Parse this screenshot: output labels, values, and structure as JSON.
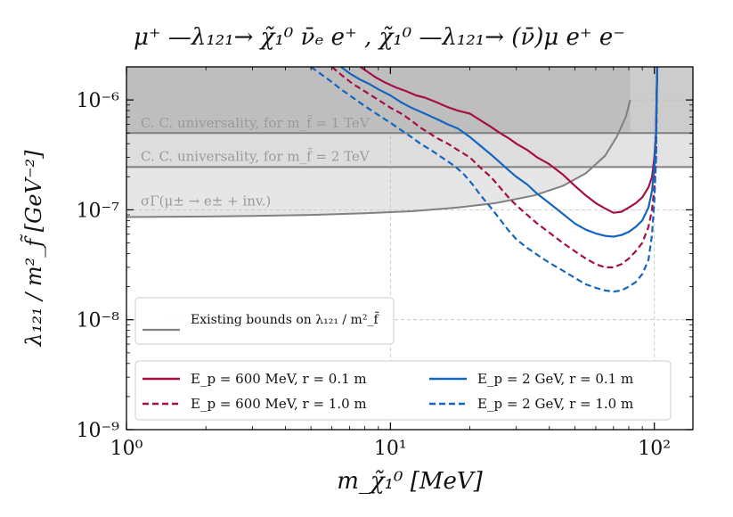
{
  "chart_data": {
    "type": "line",
    "title": "μ⁺ —λ₁₂₁→ χ̃₁⁰ ν̄ₑ e⁺ ,  χ̃₁⁰ —λ₁₂₁→ (ν̄)μ e⁺ e⁻",
    "xlabel": "m_χ̃₁⁰ [MeV]",
    "ylabel": "λ₁₂₁ / m²_f̃  [GeV⁻²]",
    "xscale": "log",
    "yscale": "log",
    "xlim": [
      1,
      140
    ],
    "ylim": [
      1e-09,
      2e-06
    ],
    "x_ticks": [
      {
        "value": 1,
        "label": "10⁰"
      },
      {
        "value": 10,
        "label": "10¹"
      },
      {
        "value": 100,
        "label": "10²"
      }
    ],
    "y_ticks": [
      {
        "value": 1e-09,
        "label": "10⁻⁹"
      },
      {
        "value": 1e-08,
        "label": "10⁻⁸"
      },
      {
        "value": 1e-07,
        "label": "10⁻⁷"
      },
      {
        "value": 1e-06,
        "label": "10⁻⁶"
      }
    ],
    "grid": true,
    "annotations": [
      {
        "id": "cc1",
        "text": "C. C. universality, for m_f̃ = 1 TeV",
        "value": 5e-07
      },
      {
        "id": "cc2",
        "text": "C. C. universality, for m_f̃ = 2 TeV",
        "value": 2.45e-07
      },
      {
        "id": "sigma",
        "text": "σΓ(μ± → e± + inv.)"
      }
    ],
    "bounds": {
      "cc_1tev": 5e-07,
      "cc_2tev": 2.45e-07,
      "sigma_curve": {
        "x": [
          1,
          2,
          3,
          5,
          8,
          12,
          18,
          25,
          35,
          45,
          55,
          65,
          72,
          78,
          81
        ],
        "y": [
          8.6e-08,
          8.7e-08,
          8.8e-08,
          9e-08,
          9.3e-08,
          9.7e-08,
          1.05e-07,
          1.15e-07,
          1.35e-07,
          1.65e-07,
          2.15e-07,
          3.1e-07,
          4.6e-07,
          7e-07,
          1e-06
        ]
      },
      "vertical_edge_x": 81
    },
    "series": [
      {
        "name": "E_p = 600 MeV, r = 0.1 m",
        "color": "#a50f45",
        "dash": "solid",
        "x": [
          7.7,
          8.2,
          8.8,
          9.5,
          10.5,
          11.5,
          12.5,
          13.5,
          15,
          16.5,
          18,
          20,
          22,
          24,
          26,
          28,
          30,
          33,
          36,
          40,
          45,
          50,
          55,
          60,
          65,
          70,
          75,
          80,
          85,
          90,
          95,
          98,
          100,
          101.5,
          102,
          102.5
        ],
        "y": [
          2e-06,
          1.8e-06,
          1.6e-06,
          1.45e-06,
          1.3e-06,
          1.2e-06,
          1.1e-06,
          1.05e-06,
          9.5e-07,
          8.6e-07,
          8e-07,
          7.5e-07,
          6.5e-07,
          5.7e-07,
          5e-07,
          4.5e-07,
          4e-07,
          3.5e-07,
          3e-07,
          2.6e-07,
          2.1e-07,
          1.65e-07,
          1.35e-07,
          1.15e-07,
          1.03e-07,
          9.4e-08,
          9.6e-08,
          1.05e-07,
          1.15e-07,
          1.3e-07,
          1.6e-07,
          2e-07,
          3e-07,
          5e-07,
          1e-06,
          2e-06
        ]
      },
      {
        "name": "E_p = 600 MeV, r = 1.0 m",
        "color": "#a50f45",
        "dash": "dashed",
        "x": [
          6.0,
          6.5,
          7.2,
          8.0,
          9.0,
          10,
          11,
          12,
          13,
          14,
          15,
          16.5,
          18,
          20,
          22,
          24,
          26,
          28,
          30,
          33,
          36,
          40,
          45,
          50,
          55,
          60,
          65,
          70,
          75,
          80,
          85,
          90,
          95,
          98,
          100,
          101.5,
          102,
          102.5
        ],
        "y": [
          2e-06,
          1.7e-06,
          1.4e-06,
          1.2e-06,
          1e-06,
          8.5e-07,
          7.5e-07,
          6.5e-07,
          5.6e-07,
          5e-07,
          4.5e-07,
          4e-07,
          3.5e-07,
          3e-07,
          2.4e-07,
          2e-07,
          1.6e-07,
          1.3e-07,
          1.1e-07,
          9e-08,
          7.5e-08,
          6.2e-08,
          5e-08,
          4.2e-08,
          3.6e-08,
          3.2e-08,
          3e-08,
          3e-08,
          3.2e-08,
          3.6e-08,
          4.2e-08,
          5e-08,
          7e-08,
          1e-07,
          1.6e-07,
          3e-07,
          8e-07,
          2e-06
        ]
      },
      {
        "name": "E_p = 2 GeV, r = 0.1 m",
        "color": "#1565c0",
        "dash": "solid",
        "x": [
          6.5,
          7.0,
          7.6,
          8.3,
          9.0,
          10,
          11,
          12,
          13.5,
          15,
          16.5,
          18,
          20,
          22,
          24,
          26,
          28,
          30,
          33,
          36,
          40,
          45,
          50,
          55,
          60,
          65,
          70,
          75,
          80,
          85,
          90,
          95,
          98,
          100,
          101.5,
          102,
          102.5
        ],
        "y": [
          2e-06,
          1.75e-06,
          1.55e-06,
          1.4e-06,
          1.25e-06,
          1.1e-06,
          9.5e-07,
          8.5e-07,
          7.5e-07,
          6.7e-07,
          6e-07,
          5.5e-07,
          4.6e-07,
          3.8e-07,
          3.2e-07,
          2.7e-07,
          2.3e-07,
          2e-07,
          1.7e-07,
          1.4e-07,
          1.15e-07,
          9.2e-08,
          7.5e-08,
          6.6e-08,
          6.1e-08,
          5.8e-08,
          5.7e-08,
          5.9e-08,
          6.3e-08,
          7e-08,
          8e-08,
          1.05e-07,
          1.5e-07,
          2.5e-07,
          5e-07,
          1e-06,
          2e-06
        ]
      },
      {
        "name": "E_p = 2 GeV, r = 1.0 m",
        "color": "#1565c0",
        "dash": "dashed",
        "x": [
          5.0,
          5.4,
          5.9,
          6.5,
          7.2,
          8.0,
          9.0,
          10,
          11,
          12,
          13,
          14.5,
          16,
          17.5,
          19,
          20.5,
          22,
          24,
          26,
          28,
          30,
          33,
          36,
          40,
          45,
          50,
          55,
          60,
          65,
          70,
          75,
          80,
          85,
          90,
          95,
          98,
          100,
          101.5,
          102,
          102.5
        ],
        "y": [
          2e-06,
          1.75e-06,
          1.5e-06,
          1.25e-06,
          1.05e-06,
          8.8e-07,
          7.3e-07,
          6.2e-07,
          5.3e-07,
          4.6e-07,
          4e-07,
          3.4e-07,
          2.9e-07,
          2.5e-07,
          2.1e-07,
          1.7e-07,
          1.35e-07,
          1.05e-07,
          8.2e-08,
          6.5e-08,
          5.4e-08,
          4.5e-08,
          3.9e-08,
          3.3e-08,
          2.8e-08,
          2.4e-08,
          2.1e-08,
          1.95e-08,
          1.85e-08,
          1.8e-08,
          1.85e-08,
          2e-08,
          2.2e-08,
          2.6e-08,
          3.5e-08,
          6e-08,
          1.2e-07,
          3e-07,
          8e-07,
          2e-06
        ]
      }
    ],
    "legend_existing": {
      "label": "Existing bounds on λ₁₂₁ / m²_f̃",
      "color": "#808080",
      "position": "center-left"
    },
    "legend_position": "lower-left"
  }
}
